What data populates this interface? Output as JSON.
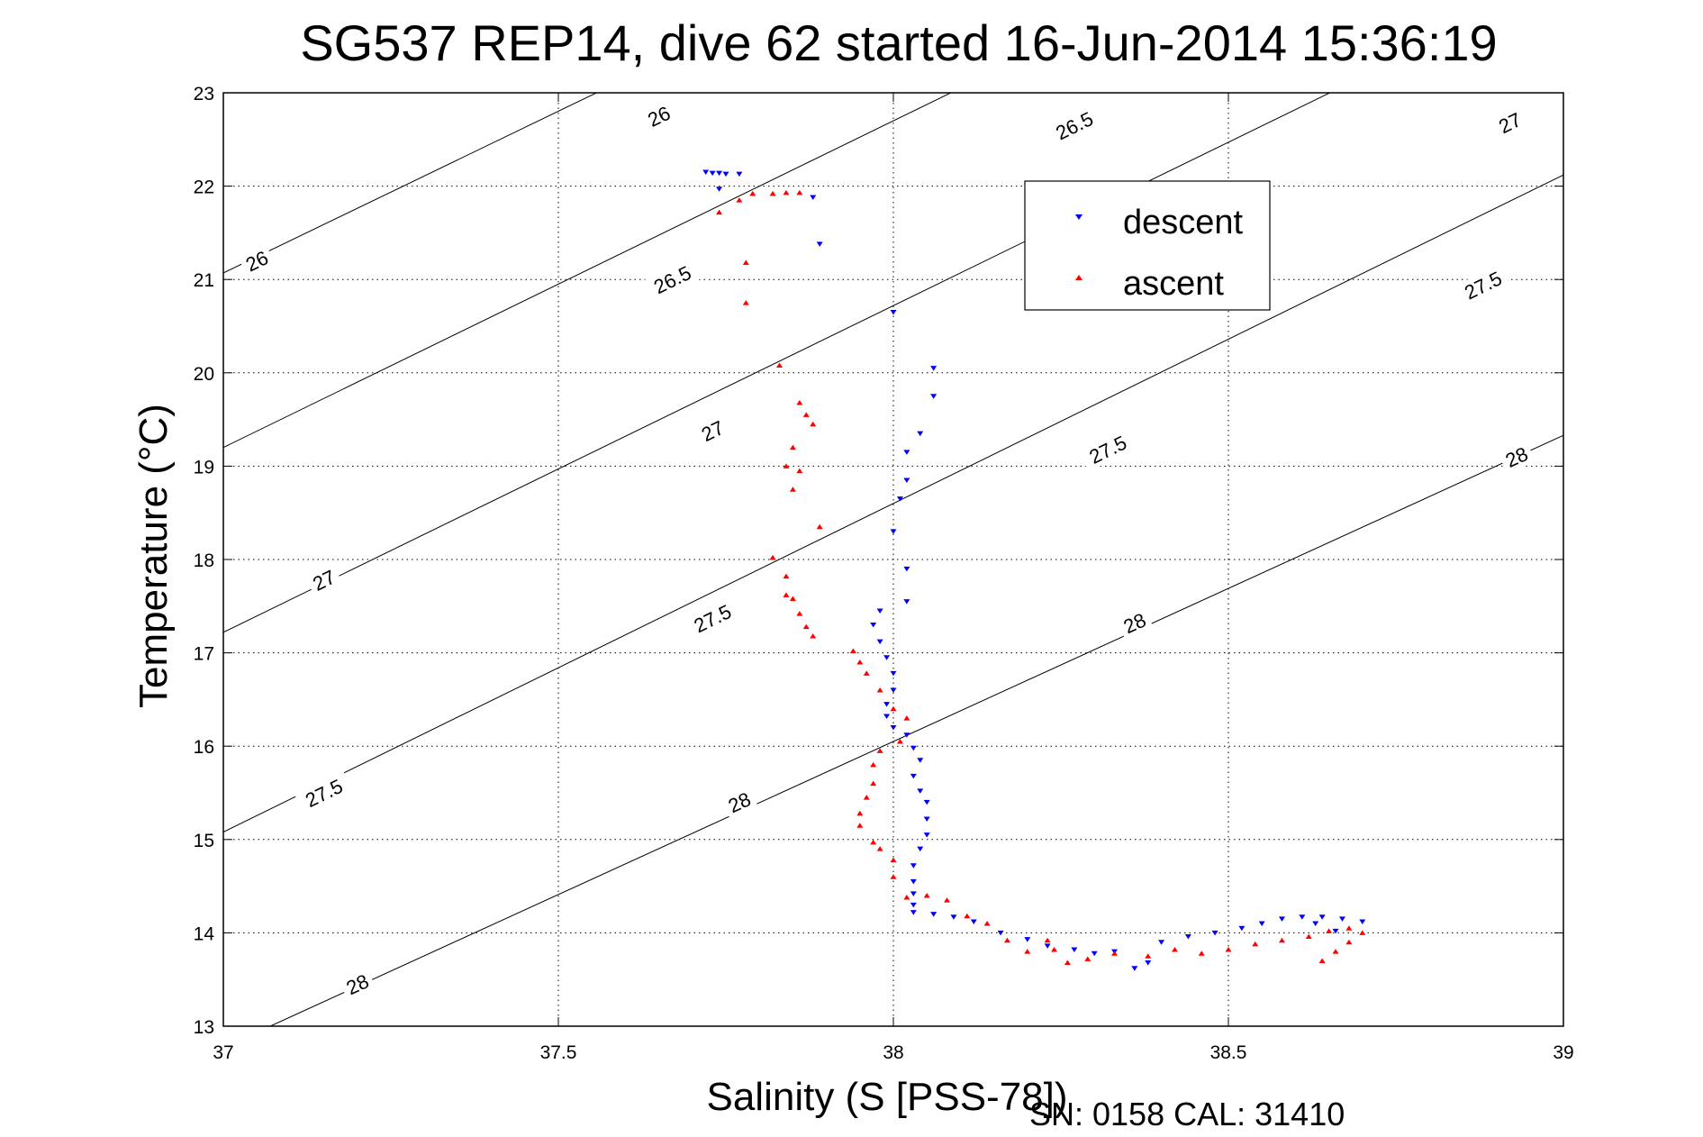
{
  "chart_data": {
    "type": "scatter",
    "title": "SG537 REP14, dive 62 started 16-Jun-2014 15:36:19",
    "xlabel": "Salinity (S [PSS-78])",
    "ylabel": "Temperature (°C)",
    "xlim": [
      37,
      39
    ],
    "ylim": [
      13,
      23
    ],
    "xticks": [
      "37",
      "37.5",
      "38",
      "38.5",
      "39"
    ],
    "yticks": [
      "13",
      "14",
      "15",
      "16",
      "17",
      "18",
      "19",
      "20",
      "21",
      "22",
      "23"
    ],
    "grid": true,
    "legend_position": "top-right",
    "footer": "SN: 0158  CAL: 31410",
    "isopycnals": [
      {
        "label": "26",
        "points": [
          [
            37,
            21.07
          ],
          [
            39,
            28.0
          ]
        ],
        "label_positions": [
          [
            37.05,
            21.2
          ],
          [
            37.65,
            22.75
          ]
        ]
      },
      {
        "label": "26.5",
        "points": [
          [
            37,
            19.2
          ],
          [
            39,
            26.2
          ]
        ],
        "label_positions": [
          [
            37.67,
            21.0
          ],
          [
            38.27,
            22.65
          ]
        ]
      },
      {
        "label": "27",
        "points": [
          [
            37,
            17.22
          ],
          [
            39,
            24.22
          ]
        ],
        "label_positions": [
          [
            37.15,
            17.78
          ],
          [
            37.73,
            19.38
          ],
          [
            38.92,
            22.68
          ]
        ]
      },
      {
        "label": "27.5",
        "points": [
          [
            37,
            15.08
          ],
          [
            39,
            22.12
          ]
        ],
        "label_positions": [
          [
            37.15,
            15.5
          ],
          [
            37.73,
            17.37
          ],
          [
            38.32,
            19.18
          ],
          [
            38.88,
            20.94
          ]
        ]
      },
      {
        "label": "28",
        "points": [
          [
            37.07,
            13
          ],
          [
            39,
            19.33
          ]
        ],
        "label_positions": [
          [
            37.2,
            13.45
          ],
          [
            37.77,
            15.4
          ],
          [
            38.36,
            17.32
          ],
          [
            38.93,
            19.1
          ]
        ]
      }
    ],
    "series": [
      {
        "name": "descent",
        "color": "#0000ff",
        "marker": "triangle-down",
        "points": [
          [
            37.72,
            22.15
          ],
          [
            37.73,
            22.14
          ],
          [
            37.74,
            22.14
          ],
          [
            37.75,
            22.13
          ],
          [
            37.77,
            22.13
          ],
          [
            37.74,
            21.97
          ],
          [
            37.88,
            21.88
          ],
          [
            37.89,
            21.38
          ],
          [
            38.0,
            20.65
          ],
          [
            38.06,
            20.05
          ],
          [
            38.06,
            19.75
          ],
          [
            38.04,
            19.35
          ],
          [
            38.02,
            19.15
          ],
          [
            38.02,
            18.85
          ],
          [
            38.01,
            18.65
          ],
          [
            38.0,
            18.3
          ],
          [
            38.02,
            17.9
          ],
          [
            38.02,
            17.55
          ],
          [
            37.98,
            17.45
          ],
          [
            37.97,
            17.3
          ],
          [
            37.98,
            17.12
          ],
          [
            37.99,
            16.95
          ],
          [
            38.0,
            16.78
          ],
          [
            38.0,
            16.6
          ],
          [
            37.99,
            16.45
          ],
          [
            37.99,
            16.32
          ],
          [
            38.0,
            16.2
          ],
          [
            38.02,
            16.12
          ],
          [
            38.03,
            15.98
          ],
          [
            38.04,
            15.85
          ],
          [
            38.03,
            15.68
          ],
          [
            38.04,
            15.52
          ],
          [
            38.05,
            15.4
          ],
          [
            38.05,
            15.22
          ],
          [
            38.05,
            15.05
          ],
          [
            38.04,
            14.9
          ],
          [
            38.03,
            14.72
          ],
          [
            38.03,
            14.55
          ],
          [
            38.03,
            14.42
          ],
          [
            38.03,
            14.3
          ],
          [
            38.03,
            14.22
          ],
          [
            38.06,
            14.2
          ],
          [
            38.09,
            14.17
          ],
          [
            38.12,
            14.12
          ],
          [
            38.16,
            14.0
          ],
          [
            38.2,
            13.93
          ],
          [
            38.23,
            13.86
          ],
          [
            38.27,
            13.82
          ],
          [
            38.3,
            13.78
          ],
          [
            38.33,
            13.8
          ],
          [
            38.36,
            13.62
          ],
          [
            38.38,
            13.68
          ],
          [
            38.4,
            13.9
          ],
          [
            38.44,
            13.96
          ],
          [
            38.48,
            14.0
          ],
          [
            38.52,
            14.05
          ],
          [
            38.55,
            14.1
          ],
          [
            38.58,
            14.15
          ],
          [
            38.61,
            14.17
          ],
          [
            38.64,
            14.17
          ],
          [
            38.67,
            14.15
          ],
          [
            38.7,
            14.12
          ],
          [
            38.66,
            14.02
          ],
          [
            38.63,
            14.1
          ]
        ]
      },
      {
        "name": "ascent",
        "color": "#ff0000",
        "marker": "triangle-up",
        "points": [
          [
            37.84,
            21.93
          ],
          [
            37.86,
            21.93
          ],
          [
            37.82,
            21.92
          ],
          [
            37.79,
            21.92
          ],
          [
            37.77,
            21.85
          ],
          [
            37.74,
            21.72
          ],
          [
            37.78,
            21.18
          ],
          [
            37.78,
            20.75
          ],
          [
            37.83,
            20.08
          ],
          [
            37.86,
            19.68
          ],
          [
            37.87,
            19.55
          ],
          [
            37.88,
            19.45
          ],
          [
            37.85,
            19.2
          ],
          [
            37.84,
            19.0
          ],
          [
            37.85,
            18.75
          ],
          [
            37.86,
            18.95
          ],
          [
            37.89,
            18.35
          ],
          [
            37.82,
            18.02
          ],
          [
            37.84,
            17.82
          ],
          [
            37.84,
            17.62
          ],
          [
            37.85,
            17.58
          ],
          [
            37.86,
            17.42
          ],
          [
            37.87,
            17.28
          ],
          [
            37.88,
            17.18
          ],
          [
            37.94,
            17.02
          ],
          [
            37.95,
            16.9
          ],
          [
            37.96,
            16.78
          ],
          [
            37.98,
            16.6
          ],
          [
            38.0,
            16.4
          ],
          [
            38.02,
            16.3
          ],
          [
            38.01,
            16.05
          ],
          [
            37.98,
            15.95
          ],
          [
            37.97,
            15.8
          ],
          [
            37.97,
            15.6
          ],
          [
            37.96,
            15.45
          ],
          [
            37.95,
            15.28
          ],
          [
            37.95,
            15.15
          ],
          [
            37.97,
            14.97
          ],
          [
            37.98,
            14.9
          ],
          [
            38.0,
            14.78
          ],
          [
            38.0,
            14.6
          ],
          [
            38.02,
            14.38
          ],
          [
            38.05,
            14.4
          ],
          [
            38.08,
            14.35
          ],
          [
            38.11,
            14.18
          ],
          [
            38.14,
            14.1
          ],
          [
            38.17,
            13.92
          ],
          [
            38.2,
            13.8
          ],
          [
            38.23,
            13.92
          ],
          [
            38.24,
            13.82
          ],
          [
            38.26,
            13.68
          ],
          [
            38.29,
            13.72
          ],
          [
            38.33,
            13.78
          ],
          [
            38.38,
            13.75
          ],
          [
            38.42,
            13.82
          ],
          [
            38.46,
            13.78
          ],
          [
            38.5,
            13.82
          ],
          [
            38.54,
            13.88
          ],
          [
            38.58,
            13.92
          ],
          [
            38.62,
            13.96
          ],
          [
            38.65,
            14.02
          ],
          [
            38.68,
            14.05
          ],
          [
            38.7,
            14.0
          ],
          [
            38.68,
            13.9
          ],
          [
            38.66,
            13.8
          ],
          [
            38.64,
            13.7
          ]
        ]
      }
    ]
  }
}
